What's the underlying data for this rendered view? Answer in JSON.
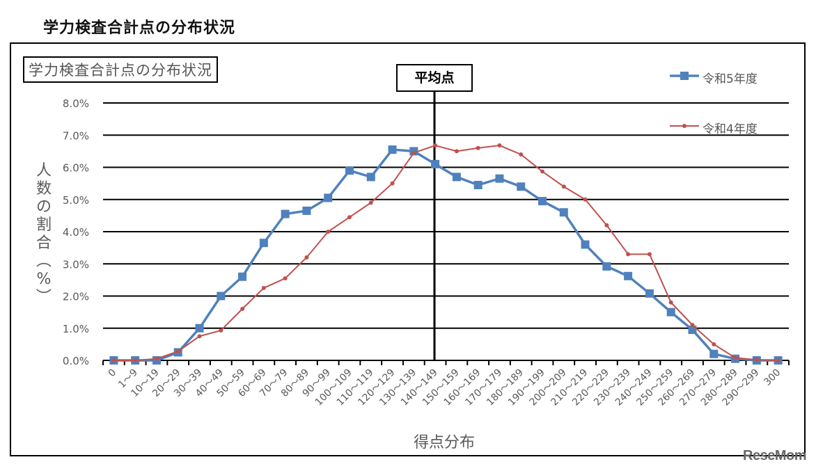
{
  "page_title": "学力検査合計点の分布状況",
  "chart_inner_title": "学力検査合計点の分布状況",
  "average_marker_label": "平均点",
  "watermark": "ReseMom",
  "colors": {
    "r5": "#4f81bd",
    "r4": "#c0504d",
    "grid": "#000000",
    "text": "#595959"
  },
  "chart_data": {
    "type": "line",
    "title": "学力検査合計点の分布状況",
    "xlabel": "得点分布",
    "ylabel": "人数の割合(%)",
    "ylim": [
      0,
      8
    ],
    "yticks": [
      "0.0%",
      "1.0%",
      "2.0%",
      "3.0%",
      "4.0%",
      "5.0%",
      "6.0%",
      "7.0%",
      "8.0%"
    ],
    "grid": true,
    "legend_position": "top-right",
    "categories": [
      "0",
      "1～9",
      "10～19",
      "20～29",
      "30～39",
      "40～49",
      "50～59",
      "60～69",
      "70～79",
      "80～89",
      "90～99",
      "100～109",
      "110～119",
      "120～129",
      "130～139",
      "140～149",
      "150～159",
      "160～169",
      "170～179",
      "180～189",
      "190～199",
      "200～209",
      "210～219",
      "220～229",
      "230～239",
      "240～249",
      "250～259",
      "260～269",
      "270～279",
      "280～289",
      "290～299",
      "300"
    ],
    "series": [
      {
        "name": "令和5年度",
        "marker": "square",
        "values": [
          0.0,
          0.0,
          0.0,
          0.25,
          1.0,
          2.0,
          2.6,
          3.65,
          4.55,
          4.65,
          5.05,
          5.9,
          5.7,
          6.55,
          6.5,
          6.1,
          5.7,
          5.45,
          5.65,
          5.4,
          4.95,
          4.6,
          3.6,
          2.92,
          2.62,
          2.08,
          1.5,
          0.95,
          0.2,
          0.05,
          0.0,
          0.0
        ]
      },
      {
        "name": "令和4年度",
        "marker": "circle",
        "values": [
          0.0,
          0.0,
          0.05,
          0.28,
          0.75,
          0.93,
          1.6,
          2.25,
          2.55,
          3.2,
          4.0,
          4.45,
          4.9,
          5.5,
          6.45,
          6.68,
          6.5,
          6.6,
          6.68,
          6.4,
          5.87,
          5.4,
          5.0,
          4.2,
          3.3,
          3.3,
          1.8,
          1.1,
          0.5,
          0.08,
          0.02,
          0.0
        ]
      }
    ],
    "annotations": [
      {
        "text": "平均点",
        "x_between": [
          "140～149",
          "150～159"
        ]
      }
    ]
  }
}
